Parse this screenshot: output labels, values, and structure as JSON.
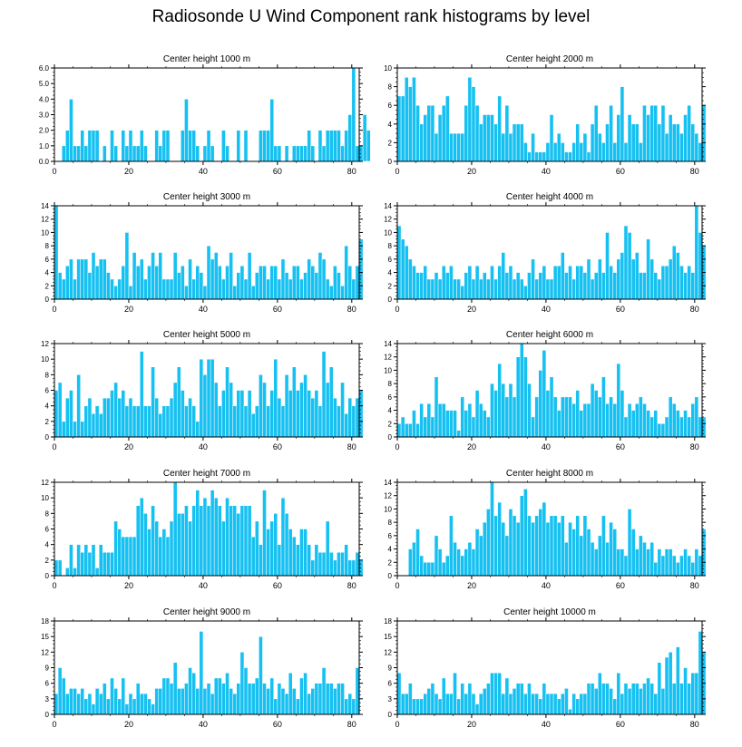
{
  "title": "Radiosonde U Wind Component rank histograms by level",
  "chart_data": [
    {
      "type": "bar",
      "title": "Center height 1000 m",
      "xlim": [
        0,
        82
      ],
      "ylim": [
        0,
        6
      ],
      "yticks": [
        0,
        1,
        2,
        3,
        4,
        5,
        6
      ],
      "ytick_labels": [
        "0.0",
        "1.0",
        "2.0",
        "3.0",
        "4.0",
        "5.0",
        "6.0"
      ],
      "xticks": [
        0,
        20,
        40,
        60,
        80
      ],
      "values": [
        0,
        0,
        1,
        2,
        4,
        1,
        1,
        2,
        1,
        2,
        2,
        2,
        0,
        1,
        0,
        2,
        1,
        0,
        2,
        1,
        2,
        1,
        1,
        2,
        1,
        0,
        0,
        2,
        1,
        2,
        2,
        0,
        0,
        0,
        2,
        4,
        2,
        2,
        1,
        0,
        1,
        2,
        1,
        0,
        0,
        2,
        1,
        0,
        0,
        2,
        0,
        2,
        0,
        0,
        0,
        2,
        2,
        2,
        4,
        1,
        1,
        0,
        1,
        0,
        1,
        1,
        1,
        1,
        2,
        1,
        0,
        2,
        1,
        2,
        2,
        2,
        2,
        1,
        2,
        3,
        6,
        1,
        1,
        3,
        2
      ]
    },
    {
      "type": "bar",
      "title": "Center height 2000 m",
      "xlim": [
        0,
        82
      ],
      "ylim": [
        0,
        10
      ],
      "yticks": [
        0,
        2,
        4,
        6,
        8,
        10
      ],
      "ytick_labels": [
        "0",
        "2",
        "4",
        "6",
        "8",
        "10"
      ],
      "xticks": [
        0,
        20,
        40,
        60,
        80
      ],
      "values": [
        7,
        7,
        9,
        8,
        9,
        6,
        4,
        5,
        6,
        6,
        3,
        5,
        6,
        7,
        3,
        3,
        3,
        3,
        6,
        9,
        8,
        6,
        4,
        5,
        5,
        5,
        4,
        7,
        3,
        6,
        3,
        4,
        4,
        4,
        2,
        1,
        3,
        1,
        1,
        1,
        2,
        5,
        2,
        3,
        2,
        1,
        1,
        2,
        4,
        2,
        3,
        1,
        4,
        6,
        3,
        2,
        4,
        6,
        2,
        5,
        8,
        2,
        5,
        4,
        4,
        2,
        6,
        5,
        6,
        6,
        4,
        6,
        3,
        5,
        4,
        4,
        3,
        5,
        6,
        4,
        3,
        2,
        6
      ]
    },
    {
      "type": "bar",
      "title": "Center height 3000 m",
      "xlim": [
        0,
        82
      ],
      "ylim": [
        0,
        14
      ],
      "yticks": [
        0,
        2,
        4,
        6,
        8,
        10,
        12,
        14
      ],
      "ytick_labels": [
        "0",
        "2",
        "4",
        "6",
        "8",
        "10",
        "12",
        "14"
      ],
      "xticks": [
        0,
        20,
        40,
        60,
        80
      ],
      "values": [
        14,
        4,
        3,
        5,
        6,
        3,
        6,
        6,
        6,
        4,
        7,
        5,
        6,
        6,
        4,
        3,
        2,
        3,
        5,
        10,
        2,
        7,
        5,
        6,
        3,
        5,
        7,
        5,
        7,
        3,
        3,
        3,
        7,
        4,
        5,
        2,
        6,
        3,
        5,
        4,
        2,
        8,
        6,
        7,
        5,
        3,
        5,
        7,
        2,
        4,
        5,
        3,
        7,
        2,
        4,
        5,
        5,
        3,
        5,
        5,
        3,
        6,
        4,
        3,
        5,
        5,
        3,
        4,
        6,
        5,
        4,
        7,
        6,
        3,
        2,
        5,
        4,
        2,
        8,
        5,
        3,
        5,
        9
      ]
    },
    {
      "type": "bar",
      "title": "Center height 4000 m",
      "xlim": [
        0,
        82
      ],
      "ylim": [
        0,
        14
      ],
      "yticks": [
        0,
        2,
        4,
        6,
        8,
        10,
        12,
        14
      ],
      "ytick_labels": [
        "0",
        "2",
        "4",
        "6",
        "8",
        "10",
        "12",
        "14"
      ],
      "xticks": [
        0,
        20,
        40,
        60,
        80
      ],
      "values": [
        11,
        9,
        8,
        6,
        5,
        4,
        4,
        5,
        3,
        3,
        4,
        3,
        5,
        4,
        5,
        3,
        3,
        2,
        4,
        5,
        3,
        5,
        3,
        4,
        3,
        5,
        3,
        5,
        7,
        4,
        5,
        3,
        4,
        3,
        2,
        4,
        6,
        3,
        4,
        5,
        3,
        3,
        5,
        5,
        7,
        4,
        5,
        3,
        5,
        5,
        4,
        6,
        3,
        4,
        6,
        4,
        10,
        5,
        4,
        6,
        7,
        11,
        10,
        6,
        7,
        4,
        4,
        9,
        6,
        4,
        3,
        5,
        5,
        6,
        8,
        7,
        5,
        4,
        5,
        4,
        14,
        10,
        8
      ]
    },
    {
      "type": "bar",
      "title": "Center height 5000 m",
      "xlim": [
        0,
        82
      ],
      "ylim": [
        0,
        12
      ],
      "yticks": [
        0,
        2,
        4,
        6,
        8,
        10,
        12
      ],
      "ytick_labels": [
        "0",
        "2",
        "4",
        "6",
        "8",
        "10",
        "12"
      ],
      "xticks": [
        0,
        20,
        40,
        60,
        80
      ],
      "values": [
        6,
        7,
        2,
        5,
        6,
        2,
        8,
        2,
        4,
        5,
        3,
        4,
        3,
        5,
        5,
        6,
        7,
        5,
        6,
        4,
        5,
        4,
        4,
        11,
        4,
        4,
        9,
        5,
        3,
        4,
        4,
        5,
        7,
        9,
        6,
        4,
        5,
        4,
        2,
        10,
        8,
        10,
        10,
        7,
        4,
        6,
        9,
        7,
        4,
        6,
        6,
        4,
        6,
        3,
        4,
        8,
        7,
        4,
        6,
        10,
        5,
        4,
        8,
        6,
        9,
        6,
        7,
        8,
        6,
        5,
        6,
        4,
        11,
        7,
        9,
        5,
        4,
        7,
        3,
        5,
        4,
        5,
        6
      ]
    },
    {
      "type": "bar",
      "title": "Center height 6000 m",
      "xlim": [
        0,
        82
      ],
      "ylim": [
        0,
        14
      ],
      "yticks": [
        0,
        2,
        4,
        6,
        8,
        10,
        12,
        14
      ],
      "ytick_labels": [
        "0",
        "2",
        "4",
        "6",
        "8",
        "10",
        "12",
        "14"
      ],
      "xticks": [
        0,
        20,
        40,
        60,
        80
      ],
      "values": [
        2,
        3,
        2,
        2,
        4,
        2,
        5,
        3,
        5,
        3,
        9,
        5,
        5,
        4,
        4,
        4,
        1,
        6,
        4,
        5,
        3,
        7,
        5,
        4,
        3,
        8,
        7,
        11,
        8,
        6,
        8,
        6,
        12,
        14,
        12,
        8,
        3,
        6,
        10,
        13,
        7,
        9,
        6,
        4,
        6,
        6,
        6,
        5,
        7,
        4,
        5,
        5,
        8,
        7,
        6,
        9,
        5,
        6,
        5,
        11,
        7,
        3,
        5,
        4,
        5,
        6,
        5,
        4,
        3,
        4,
        2,
        2,
        3,
        6,
        5,
        4,
        3,
        4,
        3,
        5,
        6,
        3,
        3
      ]
    },
    {
      "type": "bar",
      "title": "Center height 7000 m",
      "xlim": [
        0,
        82
      ],
      "ylim": [
        0,
        12
      ],
      "yticks": [
        0,
        2,
        4,
        6,
        8,
        10,
        12
      ],
      "ytick_labels": [
        "0",
        "2",
        "4",
        "6",
        "8",
        "10",
        "12"
      ],
      "xticks": [
        0,
        20,
        40,
        60,
        80
      ],
      "values": [
        2,
        2,
        0,
        1,
        4,
        1,
        4,
        3,
        4,
        3,
        4,
        1,
        4,
        3,
        3,
        3,
        7,
        6,
        5,
        5,
        5,
        5,
        9,
        10,
        8,
        6,
        9,
        7,
        5,
        6,
        5,
        7,
        12,
        8,
        8,
        9,
        7,
        9,
        11,
        9,
        10,
        9,
        11,
        10,
        9,
        7,
        10,
        9,
        9,
        8,
        9,
        9,
        9,
        5,
        7,
        4,
        11,
        6,
        7,
        8,
        4,
        10,
        8,
        6,
        5,
        4,
        6,
        6,
        4,
        2,
        4,
        3,
        3,
        7,
        3,
        2,
        3,
        3,
        4,
        2,
        2,
        3,
        2
      ]
    },
    {
      "type": "bar",
      "title": "Center height 8000 m",
      "xlim": [
        0,
        82
      ],
      "ylim": [
        0,
        14
      ],
      "yticks": [
        0,
        2,
        4,
        6,
        8,
        10,
        12,
        14
      ],
      "ytick_labels": [
        "0",
        "2",
        "4",
        "6",
        "8",
        "10",
        "12",
        "14"
      ],
      "xticks": [
        0,
        20,
        40,
        60,
        80
      ],
      "values": [
        0,
        0,
        0,
        4,
        5,
        7,
        3,
        2,
        2,
        2,
        6,
        4,
        2,
        3,
        9,
        5,
        4,
        3,
        4,
        5,
        4,
        7,
        6,
        8,
        10,
        14,
        9,
        11,
        8,
        6,
        10,
        9,
        8,
        12,
        13,
        9,
        8,
        9,
        10,
        11,
        8,
        9,
        9,
        8,
        9,
        5,
        8,
        7,
        9,
        6,
        9,
        7,
        5,
        4,
        6,
        9,
        5,
        8,
        7,
        4,
        4,
        3,
        10,
        7,
        4,
        6,
        5,
        4,
        5,
        2,
        4,
        3,
        4,
        4,
        3,
        2,
        3,
        4,
        3,
        2,
        4,
        3,
        7
      ]
    },
    {
      "type": "bar",
      "title": "Center height 9000 m",
      "xlim": [
        0,
        82
      ],
      "ylim": [
        0,
        18
      ],
      "yticks": [
        0,
        3,
        6,
        9,
        12,
        15,
        18
      ],
      "ytick_labels": [
        "0",
        "3",
        "6",
        "9",
        "12",
        "15",
        "18"
      ],
      "xticks": [
        0,
        20,
        40,
        60,
        80
      ],
      "values": [
        4,
        9,
        7,
        4,
        5,
        5,
        4,
        5,
        3,
        4,
        2,
        5,
        4,
        6,
        3,
        7,
        5,
        3,
        7,
        2,
        4,
        3,
        6,
        4,
        4,
        3,
        2,
        5,
        5,
        7,
        7,
        6,
        10,
        5,
        5,
        6,
        9,
        8,
        5,
        16,
        5,
        6,
        4,
        7,
        7,
        6,
        8,
        5,
        4,
        6,
        12,
        9,
        6,
        6,
        7,
        15,
        6,
        5,
        7,
        3,
        6,
        5,
        4,
        8,
        5,
        3,
        7,
        8,
        4,
        5,
        6,
        6,
        9,
        6,
        6,
        5,
        6,
        6,
        3,
        4,
        3,
        9
      ]
    },
    {
      "type": "bar",
      "title": "Center height 10000 m",
      "xlim": [
        0,
        82
      ],
      "ylim": [
        0,
        18
      ],
      "yticks": [
        0,
        3,
        6,
        9,
        12,
        15,
        18
      ],
      "ytick_labels": [
        "0",
        "3",
        "6",
        "9",
        "12",
        "15",
        "18"
      ],
      "xticks": [
        0,
        20,
        40,
        60,
        80
      ],
      "values": [
        8,
        4,
        4,
        6,
        3,
        3,
        3,
        4,
        5,
        6,
        4,
        3,
        7,
        4,
        4,
        8,
        3,
        6,
        4,
        6,
        4,
        2,
        4,
        5,
        6,
        8,
        8,
        8,
        4,
        7,
        4,
        5,
        6,
        6,
        4,
        6,
        4,
        4,
        3,
        6,
        4,
        4,
        4,
        3,
        4,
        5,
        1,
        4,
        3,
        4,
        4,
        6,
        6,
        5,
        8,
        6,
        6,
        5,
        3,
        8,
        4,
        6,
        5,
        6,
        6,
        5,
        6,
        7,
        6,
        4,
        10,
        5,
        11,
        12,
        6,
        13,
        6,
        9,
        6,
        8,
        8,
        16,
        12
      ]
    }
  ]
}
